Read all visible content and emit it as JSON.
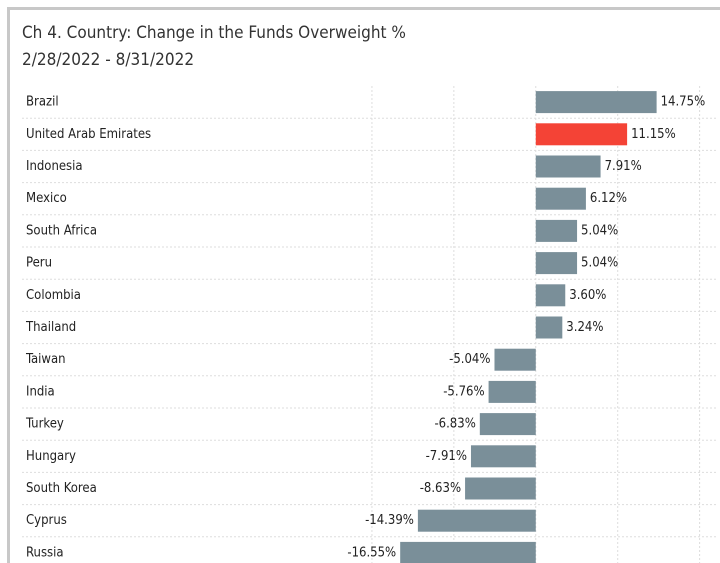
{
  "chart_data": {
    "type": "bar",
    "orientation": "horizontal",
    "title": "Ch 4.  Country:  Change in the Funds Overweight %",
    "subtitle": "2/28/2022 - 8/31/2022",
    "categories": [
      "Brazil",
      "United Arab Emirates",
      "Indonesia",
      "Mexico",
      "South Africa",
      "Peru",
      "Colombia",
      "Thailand",
      "Taiwan",
      "India",
      "Turkey",
      "Hungary",
      "South Korea",
      "Cyprus",
      "Russia"
    ],
    "values": [
      14.75,
      11.15,
      7.91,
      6.12,
      5.04,
      5.04,
      3.6,
      3.24,
      -5.04,
      -5.76,
      -6.83,
      -7.91,
      -8.63,
      -14.39,
      -16.55
    ],
    "value_labels": [
      "14.75%",
      "11.15%",
      "7.91%",
      "6.12%",
      "5.04%",
      "5.04%",
      "3.60%",
      "3.24%",
      "-5.04%",
      "-5.76%",
      "-6.83%",
      "-7.91%",
      "-8.63%",
      "-14.39%",
      "-16.55%"
    ],
    "colors": [
      "#7a8f99",
      "#f44336",
      "#7a8f99",
      "#7a8f99",
      "#7a8f99",
      "#7a8f99",
      "#7a8f99",
      "#7a8f99",
      "#7a8f99",
      "#7a8f99",
      "#7a8f99",
      "#7a8f99",
      "#7a8f99",
      "#7a8f99",
      "#7a8f99"
    ],
    "xlim": [
      -30,
      22
    ],
    "xticks": [
      -20,
      -10,
      0,
      10,
      20
    ],
    "grid": true
  }
}
